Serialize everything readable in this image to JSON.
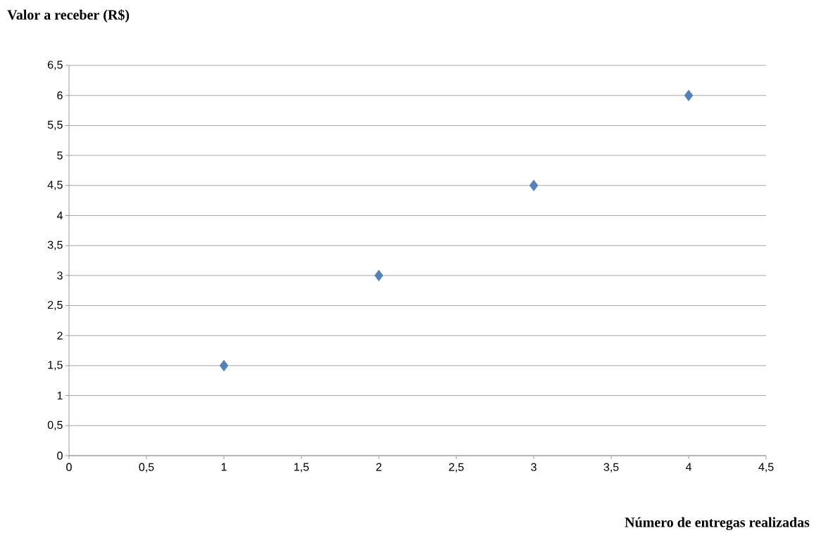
{
  "chart_data": {
    "type": "scatter",
    "ylabel": "Valor a receber (R$)",
    "xlabel": "Número de entregas realizadas",
    "x": [
      1,
      2,
      3,
      4
    ],
    "values": [
      1.5,
      3,
      4.5,
      6
    ],
    "color": "#4f81bd",
    "marker": "diamond",
    "xlim": [
      0,
      4.5
    ],
    "ylim": [
      0,
      6.5
    ],
    "xticks": [
      0,
      {
        "value": 0.5,
        "label": "0,5"
      },
      1,
      {
        "value": 1.5,
        "label": "1,5"
      },
      2,
      {
        "value": 2.5,
        "label": "2,5"
      },
      3,
      {
        "value": 3.5,
        "label": "3,5"
      },
      4,
      {
        "value": 4.5,
        "label": "4,5"
      }
    ],
    "yticks": [
      0,
      {
        "value": 0.5,
        "label": "0,5"
      },
      1,
      {
        "value": 1.5,
        "label": "1,5"
      },
      2,
      {
        "value": 2.5,
        "label": "2,5"
      },
      3,
      {
        "value": 3.5,
        "label": "3,5"
      },
      4,
      {
        "value": 4.5,
        "label": "4,5"
      },
      5,
      {
        "value": 5.5,
        "label": "5,5"
      },
      6,
      {
        "value": 6.5,
        "label": "6,5"
      }
    ],
    "grid": "y"
  }
}
